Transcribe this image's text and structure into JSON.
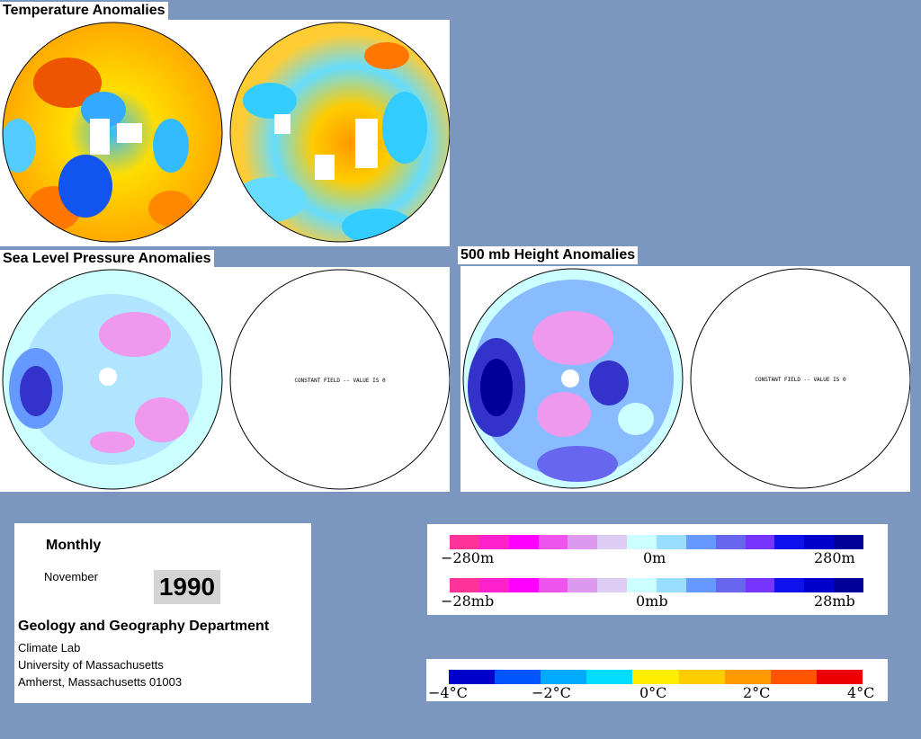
{
  "titles": {
    "temperature": "Temperature Anomalies",
    "slp": "Sea Level Pressure Anomalies",
    "height": "500 mb Height Anomalies"
  },
  "constant_field_label": "CONSTANT FIELD -- VALUE IS 0",
  "info": {
    "period": "Monthly",
    "month": "November",
    "year": "1990",
    "department": "Geology and Geography Department",
    "address": [
      "Climate Lab",
      "University of Massachusetts",
      "Amherst, Massachusetts 01003"
    ]
  },
  "scales": {
    "height": {
      "left": "−280m",
      "center": "0m",
      "right": "280m"
    },
    "pressure": {
      "left": "−28mb",
      "center": "0mb",
      "right": "28mb"
    },
    "temperature": {
      "ticks": [
        "−4°C",
        "−2°C",
        "0°C",
        "2°C",
        "4°C"
      ]
    }
  },
  "colors": {
    "background": "#7b97c0",
    "anomaly_scale": [
      "#ff3399",
      "#ff22cc",
      "#ff00ff",
      "#ee55ee",
      "#dd99ee",
      "#ddccf4",
      "#ccffff",
      "#99ddff",
      "#6699ff",
      "#6666ee",
      "#7733ff",
      "#1111ee",
      "#0000cc",
      "#000099"
    ],
    "temperature_scale": [
      "#0000cc",
      "#0055ff",
      "#00aaff",
      "#00ddff",
      "#ffee00",
      "#ffcc00",
      "#ff9900",
      "#ff5500",
      "#ee0000"
    ]
  }
}
